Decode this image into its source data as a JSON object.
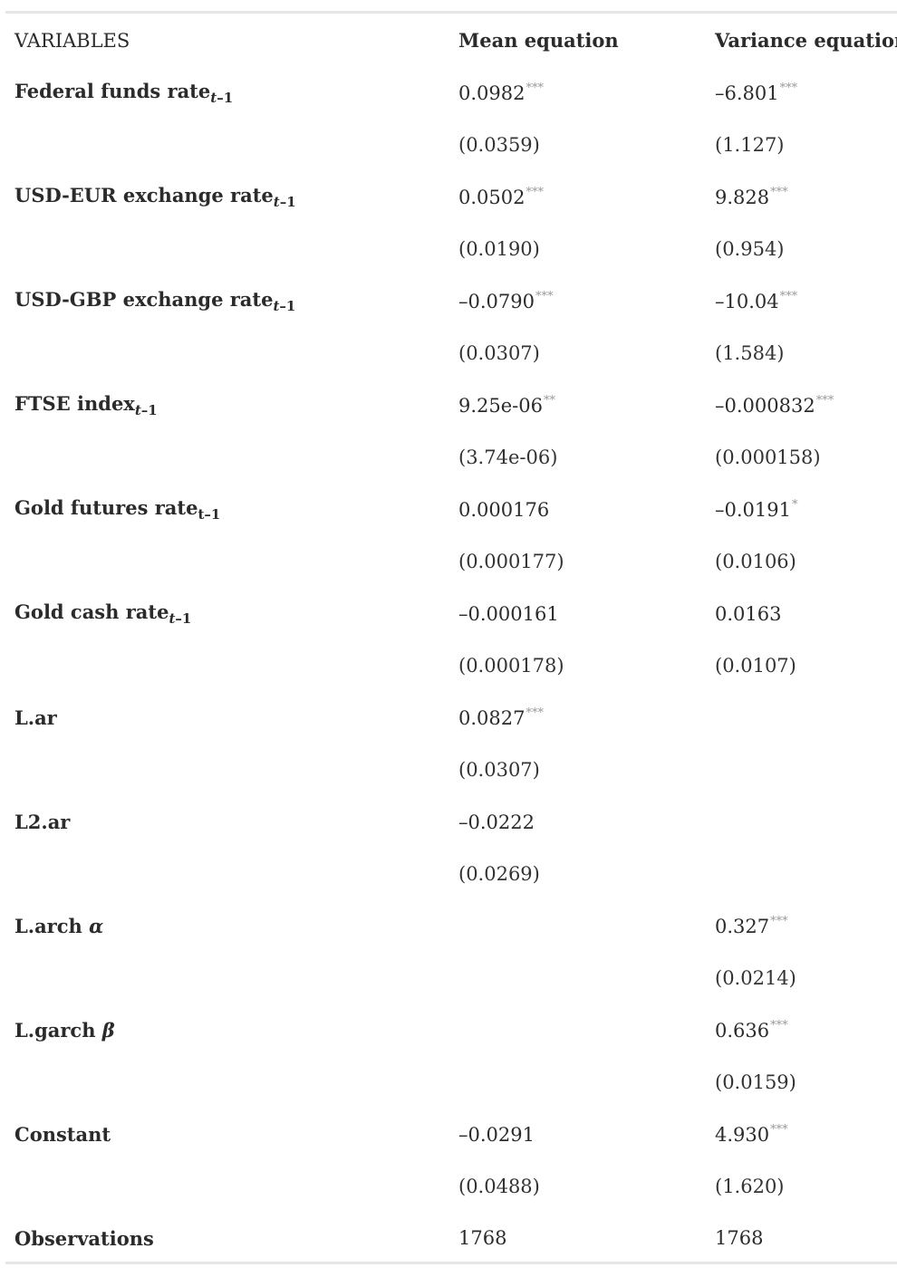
{
  "header": {
    "variables": "VARIABLES",
    "mean": "Mean equation",
    "variance": "Variance equation"
  },
  "rows": [
    {
      "label": "Federal funds rate",
      "sub_var": "t",
      "sub_rest": "–1",
      "mean": "0.0982",
      "mean_stars": "***",
      "mean_se": "(0.0359)",
      "var": "–6.801",
      "var_stars": "***",
      "var_se": "(1.127)"
    },
    {
      "label": "USD-EUR exchange rate",
      "sub_var": "t",
      "sub_rest": "–1",
      "mean": "0.0502",
      "mean_stars": "***",
      "mean_se": "(0.0190)",
      "var": "9.828",
      "var_stars": "***",
      "var_se": "(0.954)"
    },
    {
      "label": "USD-GBP exchange rate",
      "sub_var": "t",
      "sub_rest": "–1",
      "mean": "–0.0790",
      "mean_stars": "***",
      "mean_se": "(0.0307)",
      "var": "–10.04",
      "var_stars": "***",
      "var_se": "(1.584)"
    },
    {
      "label": "FTSE index",
      "sub_var": "t",
      "sub_rest": "–1",
      "mean": "9.25e-06",
      "mean_stars": "**",
      "mean_se": "(3.74e-06)",
      "var": "–0.000832",
      "var_stars": "***",
      "var_se": "(0.000158)"
    },
    {
      "label": "Gold futures rate",
      "sub_var": "",
      "sub_rest": "t–1",
      "mean": "0.000176",
      "mean_stars": "",
      "mean_se": "(0.000177)",
      "var": "–0.0191",
      "var_stars": "*",
      "var_se": "(0.0106)"
    },
    {
      "label": "Gold cash rate",
      "sub_var": "t",
      "sub_rest": "–1",
      "mean": "–0.000161",
      "mean_stars": "",
      "mean_se": "(0.000178)",
      "var": "0.0163",
      "var_stars": "",
      "var_se": "(0.0107)"
    },
    {
      "label": "L.ar",
      "sub_var": "",
      "sub_rest": "",
      "mean": "0.0827",
      "mean_stars": "***",
      "mean_se": "(0.0307)",
      "var": "",
      "var_stars": "",
      "var_se": ""
    },
    {
      "label": "L2.ar",
      "sub_var": "",
      "sub_rest": "",
      "mean": "–0.0222",
      "mean_stars": "",
      "mean_se": "(0.0269)",
      "var": "",
      "var_stars": "",
      "var_se": ""
    },
    {
      "label": "L.arch ",
      "greek": "α",
      "sub_var": "",
      "sub_rest": "",
      "mean": "",
      "mean_stars": "",
      "mean_se": "",
      "var": "0.327",
      "var_stars": "***",
      "var_se": "(0.0214)"
    },
    {
      "label": "L.garch ",
      "greek": "β",
      "sub_var": "",
      "sub_rest": "",
      "mean": "",
      "mean_stars": "",
      "mean_se": "",
      "var": "0.636",
      "var_stars": "***",
      "var_se": "(0.0159)"
    },
    {
      "label": "Constant",
      "sub_var": "",
      "sub_rest": "",
      "mean": "–0.0291",
      "mean_stars": "",
      "mean_se": "(0.0488)",
      "var": "4.930",
      "var_stars": "***",
      "var_se": "(1.620)"
    }
  ],
  "observations": {
    "label": "Observations",
    "mean": "1768",
    "var": "1768"
  }
}
